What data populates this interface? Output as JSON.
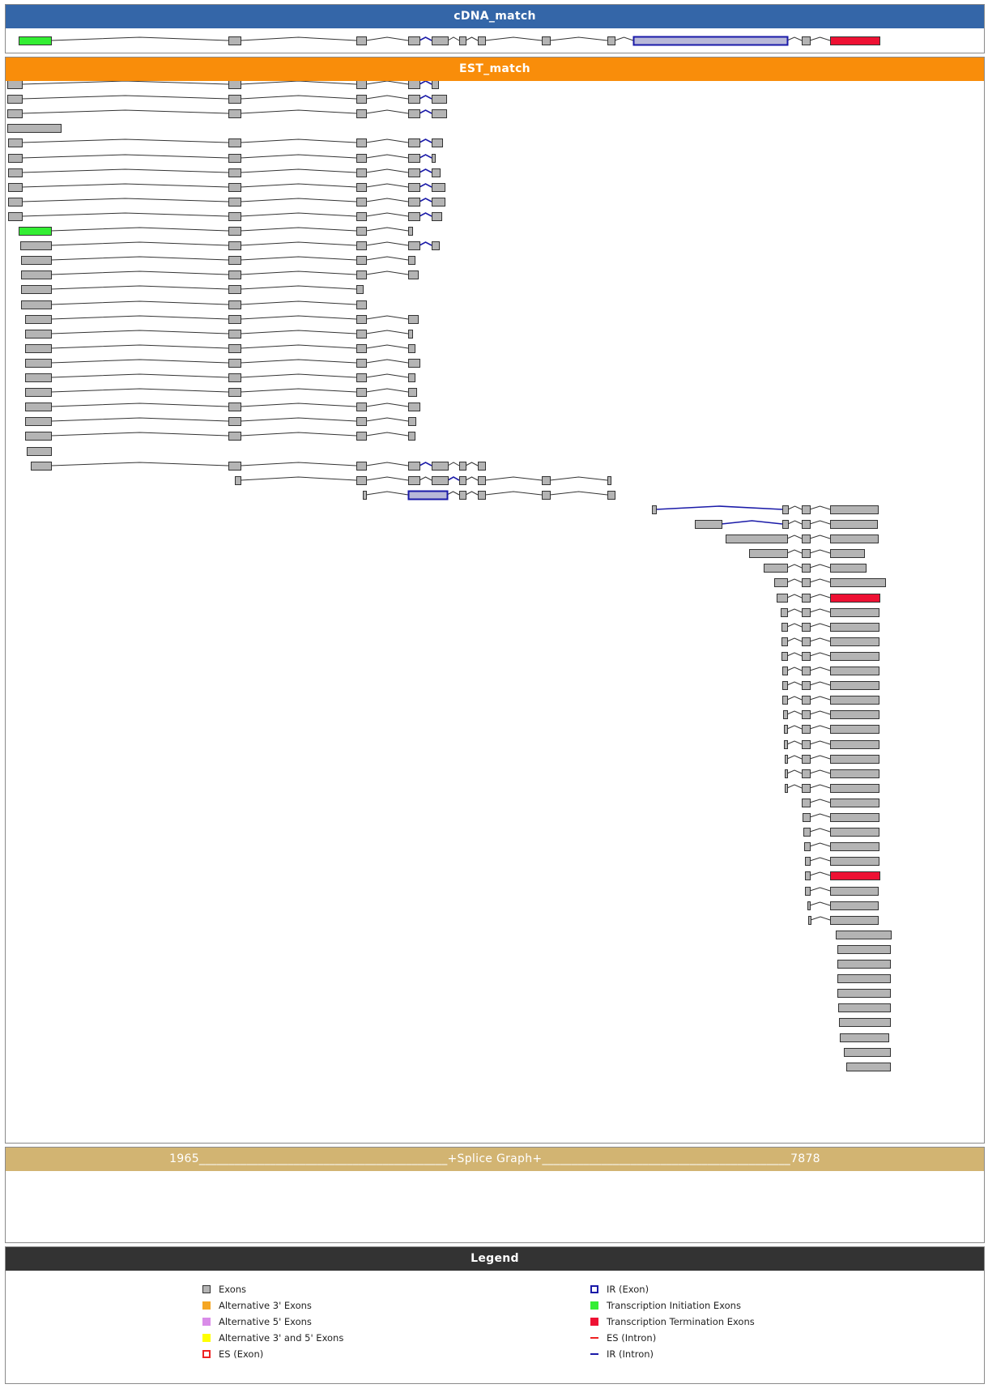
{
  "panels": {
    "cdna": {
      "title": "cDNA_match"
    },
    "est": {
      "title": "EST_match"
    },
    "splice": {
      "left_coord": "1965",
      "title": "+Splice Graph+",
      "right_coord": "7878"
    },
    "legend": {
      "title": "Legend"
    }
  },
  "colors": {
    "exon_fill": "#b4b4b4",
    "exon_stroke": "#333333",
    "ir_exon_fill": "#b8b8d8",
    "ir_stroke": "#1a1aa8",
    "initiation": "#33ee33",
    "termination": "#ee1133",
    "alt3": "#f5a623",
    "alt5": "#d98ce8",
    "alt35": "#ffff00",
    "es": "#ee2222"
  },
  "legend": {
    "left": [
      {
        "label": "Exons",
        "swatch": "exon",
        "icon": "gray-square-icon"
      },
      {
        "label": "Alternative 3' Exons",
        "swatch": "alt3",
        "icon": "orange-square-icon"
      },
      {
        "label": "Alternative 5' Exons",
        "swatch": "alt5",
        "icon": "violet-square-icon"
      },
      {
        "label": "Alternative 3' and 5' Exons",
        "swatch": "alt35",
        "icon": "yellow-square-icon"
      },
      {
        "label": "ES (Exon)",
        "swatch": "es-exon",
        "icon": "dashed-red-square-icon"
      }
    ],
    "right": [
      {
        "label": "IR (Exon)",
        "swatch": "ir-exon",
        "icon": "blue-outline-square-icon"
      },
      {
        "label": "Transcription Initiation Exons",
        "swatch": "init",
        "icon": "green-square-icon"
      },
      {
        "label": "Transcription Termination Exons",
        "swatch": "term",
        "icon": "red-square-icon"
      },
      {
        "label": "ES (Intron)",
        "swatch": "es-intron",
        "icon": "dashed-red-line-icon"
      },
      {
        "label": "IR (Intron)",
        "swatch": "ir-intron",
        "icon": "blue-line-icon"
      }
    ]
  }
}
